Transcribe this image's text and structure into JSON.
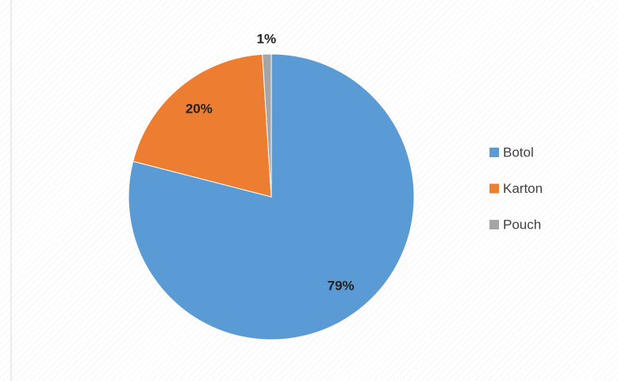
{
  "chart_data": {
    "type": "pie",
    "categories": [
      "Botol",
      "Karton",
      "Pouch"
    ],
    "values": [
      79,
      20,
      1
    ],
    "value_labels": [
      "79%",
      "20%",
      "1%"
    ],
    "colors": [
      "#5b9bd5",
      "#ed7d31",
      "#a5a5a5"
    ],
    "legend": "right"
  }
}
